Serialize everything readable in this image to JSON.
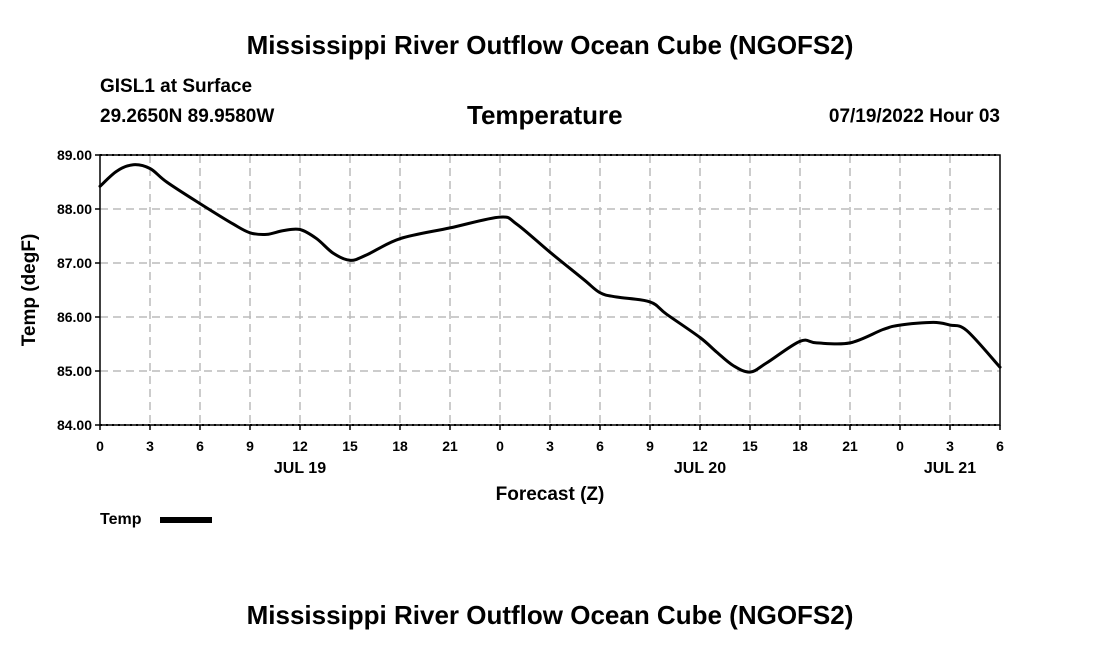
{
  "page": {
    "title": "Mississippi River Outflow Ocean Cube (NGOFS2)",
    "footer_title": "Mississippi River Outflow Ocean Cube (NGOFS2)",
    "station": "GISL1 at Surface",
    "coordinates": "29.2650N  89.9580W",
    "variable": "Temperature",
    "datetime": "07/19/2022 Hour 03"
  },
  "chart_data": {
    "type": "line",
    "title": "Temperature",
    "xlabel": "Forecast (Z)",
    "ylabel": "Temp (degF)",
    "ylim": [
      84.0,
      89.0
    ],
    "xlim_hours": [
      0,
      54
    ],
    "grid": true,
    "y_ticks": [
      "84.00",
      "85.00",
      "86.00",
      "87.00",
      "88.00",
      "89.00"
    ],
    "y_tick_values": [
      84,
      85,
      86,
      87,
      88,
      89
    ],
    "x_tick_labels": [
      "0",
      "3",
      "6",
      "9",
      "12",
      "15",
      "18",
      "21",
      "0",
      "3",
      "6",
      "9",
      "12",
      "15",
      "18",
      "21",
      "0",
      "3",
      "6"
    ],
    "day_labels": [
      {
        "label": "JUL 19",
        "hour": 12
      },
      {
        "label": "JUL 20",
        "hour": 36
      },
      {
        "label": "JUL 21",
        "hour": 51
      }
    ],
    "legend": {
      "label": "Temp",
      "color": "#000000",
      "placement": "bottom-left"
    },
    "series": [
      {
        "name": "Temp",
        "color": "#000000",
        "x": [
          0,
          1,
          2,
          3,
          4,
          6,
          8,
          9,
          10,
          11,
          12,
          13,
          14,
          15,
          16,
          18,
          21,
          24,
          25,
          27,
          29,
          30,
          31,
          33,
          34,
          36,
          37,
          38,
          39,
          40,
          42,
          43,
          45,
          47,
          48,
          50,
          51,
          52,
          54
        ],
        "values": [
          88.42,
          88.7,
          88.82,
          88.75,
          88.5,
          88.1,
          87.72,
          87.56,
          87.53,
          87.6,
          87.62,
          87.45,
          87.18,
          87.05,
          87.15,
          87.45,
          87.65,
          87.85,
          87.72,
          87.2,
          86.7,
          86.45,
          86.37,
          86.28,
          86.05,
          85.62,
          85.35,
          85.1,
          84.98,
          85.15,
          85.55,
          85.52,
          85.52,
          85.77,
          85.85,
          85.9,
          85.85,
          85.75,
          85.07
        ]
      }
    ]
  }
}
